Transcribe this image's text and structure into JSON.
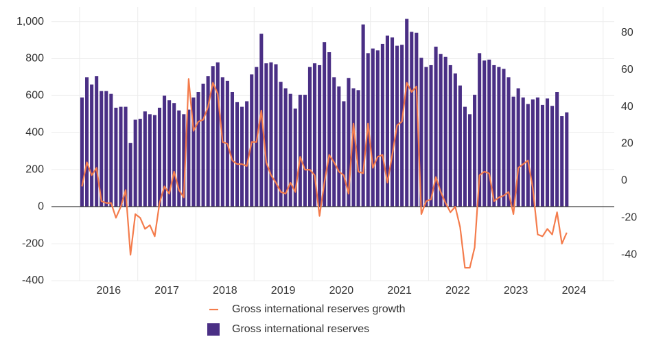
{
  "chart_data": {
    "type": "bar-line",
    "categories": [
      null,
      null,
      null,
      null,
      null,
      null,
      null,
      null,
      null,
      null,
      null,
      null,
      null,
      null,
      null,
      null,
      null,
      null,
      null,
      null,
      null,
      null,
      null,
      null,
      null,
      null,
      null,
      null,
      null,
      null,
      null,
      null,
      null,
      null,
      null,
      null,
      null,
      null,
      null,
      null,
      null,
      null,
      null,
      null,
      null,
      null,
      null,
      null,
      null,
      null,
      null,
      null,
      null,
      null,
      null,
      null,
      null,
      null,
      null,
      null,
      null,
      null,
      null,
      null,
      null,
      null,
      null,
      null,
      null,
      null,
      null,
      null,
      null,
      null,
      null,
      null,
      null,
      null,
      null,
      null,
      null,
      null,
      null,
      null,
      null,
      null,
      null,
      null,
      null,
      null,
      null,
      null,
      null,
      null,
      null,
      null,
      null,
      null,
      null,
      null,
      null
    ],
    "xlim": [
      -5.8,
      110.3
    ],
    "xgrid": [
      0,
      12,
      24,
      36,
      48,
      60,
      72,
      84,
      96,
      108
    ],
    "xticks": [
      {
        "value": 6,
        "label": "2016"
      },
      {
        "value": 18,
        "label": "2017"
      },
      {
        "value": 30,
        "label": "2018"
      },
      {
        "value": 42,
        "label": "2019"
      },
      {
        "value": 54,
        "label": "2020"
      },
      {
        "value": 66,
        "label": "2021"
      },
      {
        "value": 78,
        "label": "2022"
      },
      {
        "value": 90,
        "label": "2023"
      },
      {
        "value": 102,
        "label": "2024"
      }
    ],
    "ylim": [
      -400,
      1080
    ],
    "yticks": [
      {
        "value": -400,
        "label": "-400"
      },
      {
        "value": -200,
        "label": "-200"
      },
      0,
      200,
      400,
      600,
      800,
      {
        "value": 1000,
        "label": "1,000"
      }
    ],
    "y2lim": [
      -54,
      94
    ],
    "y2ticks": [
      {
        "value": -40,
        "label": "-40"
      },
      {
        "value": -20,
        "label": "-20"
      },
      0,
      20,
      40,
      60,
      80
    ],
    "grid": true,
    "series": [
      {
        "name": "Gross international reserves growth",
        "type": "line",
        "axis": "y2",
        "color": "#f47c4c",
        "values": [
          -3,
          10,
          3,
          7,
          -11,
          -12,
          -12,
          -20,
          -14,
          -5,
          -40,
          -18,
          -20,
          -26,
          -24,
          -30,
          -12,
          -3,
          -7,
          5,
          -5,
          -9,
          55,
          27,
          32,
          33,
          40,
          53,
          47,
          21,
          20,
          11,
          9,
          9,
          8,
          21,
          21,
          38,
          10,
          3,
          -1,
          -6,
          -7,
          -1,
          -6,
          13,
          6,
          6,
          3,
          -19,
          -1,
          14,
          10,
          5,
          3,
          -7,
          31,
          5,
          4,
          31,
          7,
          13,
          14,
          -1,
          14,
          30,
          32,
          53,
          48,
          51,
          -18,
          -11,
          -10,
          2,
          -6,
          -12,
          -17,
          -14,
          -25,
          -47,
          -47,
          -36,
          3,
          5,
          4,
          -11,
          -9,
          -8,
          -6,
          -18,
          7,
          9,
          11,
          -4,
          -29,
          -30,
          -26,
          -29,
          -17,
          -34,
          -28
        ]
      },
      {
        "name": "Gross international reserves",
        "type": "bar",
        "color": "#4a2f85",
        "values": [
          590,
          700,
          660,
          705,
          625,
          625,
          610,
          535,
          540,
          540,
          345,
          470,
          475,
          515,
          500,
          495,
          535,
          600,
          575,
          560,
          520,
          500,
          525,
          590,
          620,
          665,
          705,
          760,
          780,
          700,
          680,
          620,
          565,
          540,
          570,
          715,
          755,
          935,
          775,
          780,
          770,
          675,
          640,
          610,
          530,
          605,
          605,
          755,
          775,
          765,
          890,
          835,
          700,
          650,
          570,
          695,
          640,
          630,
          985,
          830,
          855,
          845,
          880,
          925,
          915,
          870,
          875,
          1015,
          945,
          940,
          805,
          755,
          765,
          865,
          825,
          810,
          765,
          720,
          655,
          540,
          500,
          605,
          830,
          790,
          795,
          765,
          755,
          745,
          700,
          595,
          640,
          590,
          555,
          580,
          590,
          550,
          585,
          545,
          620,
          490,
          510
        ]
      }
    ]
  }
}
